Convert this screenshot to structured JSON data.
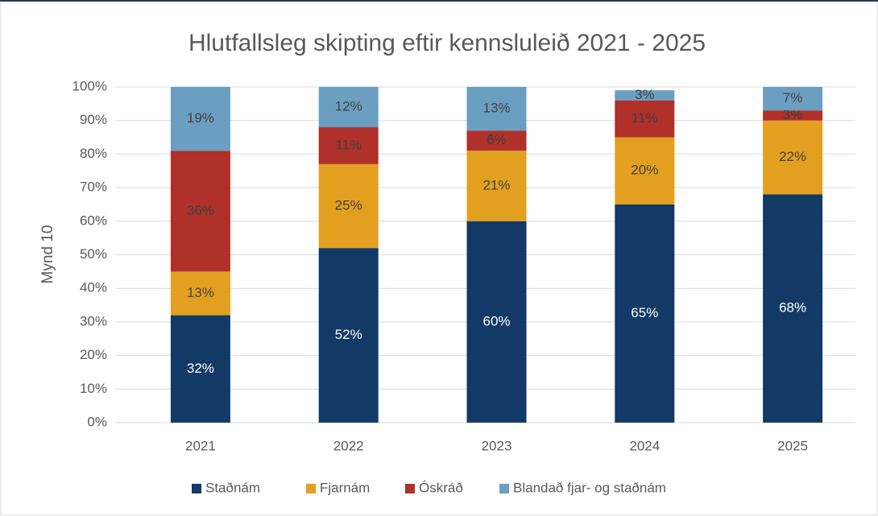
{
  "chart_data": {
    "type": "stacked_bar",
    "title": "Hlutfallsleg skipting eftir kennsluleið 2021 - 2025",
    "y_label": "Mynd 10",
    "categories": [
      "2021",
      "2022",
      "2023",
      "2024",
      "2025"
    ],
    "series": [
      {
        "name": "Staðnám",
        "color": "#133a66",
        "label_color": "#ffffff",
        "values": [
          32,
          52,
          60,
          65,
          68
        ],
        "value_labels": [
          "32%",
          "52%",
          "60%",
          "65%",
          "68%"
        ]
      },
      {
        "name": "Fjarnám",
        "color": "#e3a020",
        "label_color": "#404040",
        "values": [
          13,
          25,
          21,
          20,
          22
        ],
        "value_labels": [
          "13%",
          "25%",
          "21%",
          "20%",
          "22%"
        ]
      },
      {
        "name": "Óskráð",
        "color": "#b0302a",
        "label_color": "#404040",
        "values": [
          36,
          11,
          6,
          11,
          3
        ],
        "value_labels": [
          "36%",
          "11%",
          "6%",
          "11%",
          "3%"
        ]
      },
      {
        "name": "Blandað fjar- og staðnám",
        "color": "#6b9fc1",
        "label_color": "#404040",
        "values": [
          19,
          12,
          13,
          3,
          7
        ],
        "value_labels": [
          "19%",
          "12%",
          "13%",
          "3%",
          "7%"
        ]
      }
    ],
    "ylim": [
      0,
      100
    ],
    "yticks": [
      {
        "value": 0,
        "label": "0%"
      },
      {
        "value": 10,
        "label": "10%"
      },
      {
        "value": 20,
        "label": "20%"
      },
      {
        "value": 30,
        "label": "30%"
      },
      {
        "value": 40,
        "label": "40%"
      },
      {
        "value": 50,
        "label": "50%"
      },
      {
        "value": 60,
        "label": "60%"
      },
      {
        "value": 70,
        "label": "70%"
      },
      {
        "value": 80,
        "label": "80%"
      },
      {
        "value": 90,
        "label": "90%"
      },
      {
        "value": 100,
        "label": "100%"
      }
    ],
    "grid": true,
    "legend": "bottom"
  }
}
